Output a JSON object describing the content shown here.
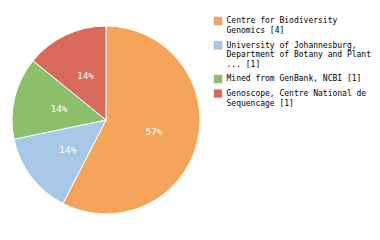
{
  "chart_data": {
    "type": "pie",
    "categories": [
      "Centre for Biodiversity\nGenomics [4]",
      "University of Johannesburg,\nDepartment of Botany and Plant\n... [1]",
      "Mined from GenBank, NCBI [1]",
      "Genoscope, Centre National de\nSequencage [1]"
    ],
    "values": [
      57,
      14,
      14,
      14
    ],
    "value_labels": [
      "57%",
      "14%",
      "14%",
      "14%"
    ],
    "colors": [
      "#F5A55A",
      "#A8C8E8",
      "#8CBF6A",
      "#D9695A"
    ],
    "data_labels": true,
    "legend": "right"
  }
}
